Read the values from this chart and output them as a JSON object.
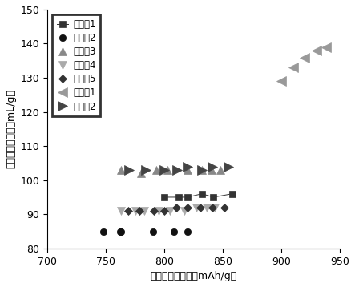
{
  "title": "",
  "xlabel": "累计不可逆容量（mAh/g）",
  "ylabel": "累计气体产生量（mL/g）",
  "xlim": [
    700,
    950
  ],
  "ylim": [
    80,
    150
  ],
  "xticks": [
    700,
    750,
    800,
    850,
    900,
    950
  ],
  "yticks": [
    80,
    90,
    100,
    110,
    120,
    130,
    140,
    150
  ],
  "series": [
    {
      "label": "实施例1",
      "marker": "s",
      "color": "#333333",
      "markersize": 6,
      "linestyle": "-",
      "linewidth": 0.7,
      "x": [
        800,
        812,
        820,
        832,
        842,
        858
      ],
      "y": [
        95,
        95,
        95,
        96,
        95,
        96
      ]
    },
    {
      "label": "实施例2",
      "marker": "o",
      "color": "#111111",
      "markersize": 6,
      "linestyle": "-",
      "linewidth": 0.7,
      "x": [
        748,
        762,
        763,
        790,
        808,
        820
      ],
      "y": [
        85,
        85,
        85,
        85,
        85,
        85
      ]
    },
    {
      "label": "实施例3",
      "marker": "^",
      "color": "#888888",
      "markersize": 7,
      "linestyle": "",
      "linewidth": 0.8,
      "x": [
        763,
        780,
        793,
        803,
        820,
        832,
        840,
        848
      ],
      "y": [
        103,
        102,
        103,
        103,
        103,
        103,
        103,
        103
      ]
    },
    {
      "label": "实施例4",
      "marker": "v",
      "color": "#aaaaaa",
      "markersize": 7,
      "linestyle": "",
      "linewidth": 0.8,
      "x": [
        763,
        775,
        783,
        795,
        805,
        817,
        827,
        836,
        843
      ],
      "y": [
        91,
        91,
        91,
        91,
        91,
        91,
        92,
        92,
        92
      ]
    },
    {
      "label": "实施例5",
      "marker": "D",
      "color": "#333333",
      "markersize": 5,
      "linestyle": "",
      "linewidth": 0.8,
      "x": [
        769,
        779,
        791,
        800,
        810,
        820,
        831,
        841,
        851
      ],
      "y": [
        91,
        91,
        91,
        91,
        92,
        92,
        92,
        92,
        92
      ]
    },
    {
      "label": "比较例1",
      "marker": "<",
      "color": "#999999",
      "markersize": 8,
      "linestyle": "",
      "linewidth": 0.8,
      "x": [
        900,
        910,
        920,
        930,
        938
      ],
      "y": [
        129,
        133,
        136,
        138,
        139
      ]
    },
    {
      "label": "比较例2",
      "marker": ">",
      "color": "#444444",
      "markersize": 8,
      "linestyle": "",
      "linewidth": 0.8,
      "x": [
        770,
        784,
        800,
        811,
        820,
        832,
        841,
        855
      ],
      "y": [
        103,
        103,
        103,
        103,
        104,
        103,
        104,
        104
      ]
    }
  ],
  "legend_loc": "upper left",
  "legend_fontsize": 8.5,
  "tick_fontsize": 9,
  "label_fontsize": 9
}
